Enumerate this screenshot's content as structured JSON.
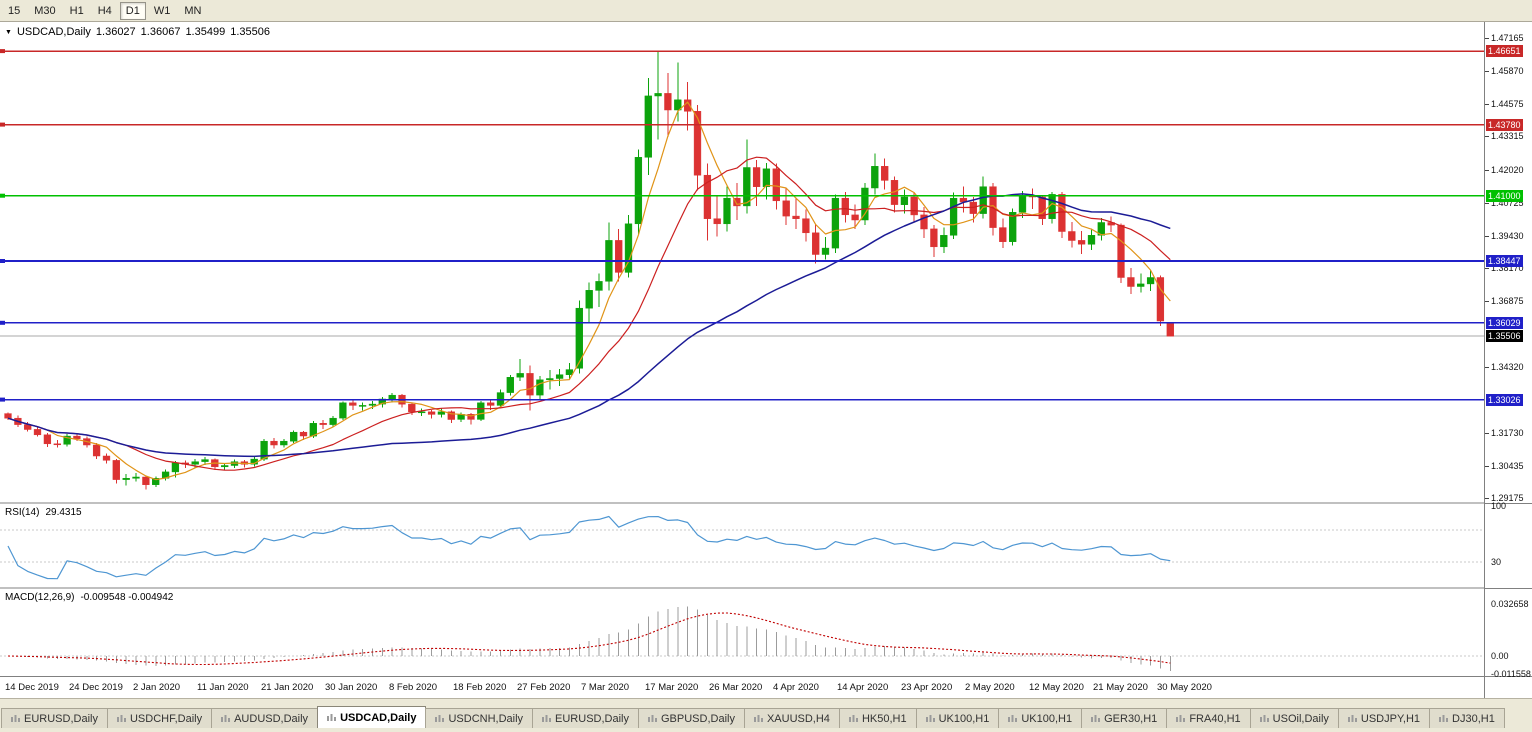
{
  "toolbar": {
    "timeframes": [
      "15",
      "M30",
      "H1",
      "H4",
      "D1",
      "W1",
      "MN"
    ],
    "active": "D1"
  },
  "panels": {
    "main": {
      "symbol": "USDCAD,Daily",
      "open": "1.36027",
      "high": "1.36067",
      "low": "1.35499",
      "close": "1.35506"
    },
    "rsi": {
      "name": "RSI(14)",
      "value": "29.4315",
      "period": 14,
      "color": "#4E96D2",
      "levels": [
        70,
        30
      ],
      "axis_labels": [
        {
          "text": "100",
          "value": 100
        },
        {
          "text": "30",
          "value": 30
        }
      ]
    },
    "macd": {
      "name": "MACD(12,26,9)",
      "value": "-0.009548 -0.004942",
      "fast": 12,
      "slow": 26,
      "signal": 9,
      "hist_color": "#9C9C9C",
      "signal_color": "#C00000",
      "axis_labels": [
        {
          "text": "0.032658",
          "value": 0.032658
        },
        {
          "text": "0.00",
          "value": 0
        },
        {
          "text": "-0.011558",
          "value": -0.011558
        }
      ]
    }
  },
  "chart_data": {
    "type": "candlestick",
    "symbol": "USDCAD",
    "timeframe": "Daily",
    "up_color": "#0CA30C",
    "down_color": "#DC3232",
    "y_axis_ticks": [
      "1.47165",
      "1.45870",
      "1.44575",
      "1.43315",
      "1.42020",
      "1.40725",
      "1.39430",
      "1.38170",
      "1.36875",
      "1.34320",
      "1.31730",
      "1.30435",
      "1.29175"
    ],
    "x_axis_labels": [
      "14 Dec 2019",
      "24 Dec 2019",
      "2 Jan 2020",
      "11 Jan 2020",
      "21 Jan 2020",
      "30 Jan 2020",
      "8 Feb 2020",
      "18 Feb 2020",
      "27 Feb 2020",
      "7 Mar 2020",
      "17 Mar 2020",
      "26 Mar 2020",
      "4 Apr 2020",
      "14 Apr 2020",
      "23 Apr 2020",
      "2 May 2020",
      "12 May 2020",
      "21 May 2020",
      "30 May 2020"
    ],
    "horizontal_lines": [
      {
        "price": 1.46651,
        "label": "1.46651",
        "color": "#C82828"
      },
      {
        "price": 1.4378,
        "label": "1.43780",
        "color": "#C82828"
      },
      {
        "price": 1.41,
        "label": "1.41000",
        "color": "#00C000"
      },
      {
        "price": 1.38447,
        "label": "1.38447",
        "color": "#2020C8"
      },
      {
        "price": 1.36029,
        "label": "1.36029",
        "color": "#2020C8"
      },
      {
        "price": 1.33026,
        "label": "1.33026",
        "color": "#2020C8"
      }
    ],
    "current_price": {
      "value": 1.35506,
      "label": "1.35506",
      "line_color": "#A8A8A8",
      "label_bg": "#000000"
    },
    "moving_averages": [
      {
        "period": 5,
        "color": "#E09418",
        "width": 1.2
      },
      {
        "period": 13,
        "color": "#CC2020",
        "width": 1.2
      },
      {
        "period": 40,
        "color": "#1C1C96",
        "width": 1.5
      }
    ],
    "candles": [
      [
        1.3248,
        1.3252,
        1.3222,
        1.323
      ],
      [
        1.323,
        1.324,
        1.3196,
        1.3205
      ],
      [
        1.3205,
        1.3215,
        1.3178,
        1.3186
      ],
      [
        1.3186,
        1.3198,
        1.3158,
        1.3165
      ],
      [
        1.3165,
        1.3172,
        1.3118,
        1.313
      ],
      [
        1.313,
        1.3145,
        1.3115,
        1.3128
      ],
      [
        1.3128,
        1.3168,
        1.312,
        1.316
      ],
      [
        1.316,
        1.3172,
        1.314,
        1.315
      ],
      [
        1.315,
        1.3158,
        1.3116,
        1.3125
      ],
      [
        1.3125,
        1.3132,
        1.307,
        1.3082
      ],
      [
        1.3082,
        1.3092,
        1.3052,
        1.3065
      ],
      [
        1.3065,
        1.307,
        1.2975,
        1.299
      ],
      [
        1.299,
        1.3012,
        1.2966,
        1.2995
      ],
      [
        1.2995,
        1.3015,
        1.2982,
        1.3
      ],
      [
        1.3,
        1.3005,
        1.2952,
        1.297
      ],
      [
        1.297,
        1.3002,
        1.296,
        1.2995
      ],
      [
        1.2995,
        1.303,
        1.2986,
        1.302
      ],
      [
        1.302,
        1.3062,
        1.2998,
        1.3055
      ],
      [
        1.3055,
        1.3065,
        1.3035,
        1.305
      ],
      [
        1.305,
        1.307,
        1.3038,
        1.306
      ],
      [
        1.306,
        1.3078,
        1.3046,
        1.3068
      ],
      [
        1.3068,
        1.3072,
        1.3028,
        1.304
      ],
      [
        1.304,
        1.3055,
        1.3025,
        1.3045
      ],
      [
        1.3045,
        1.3068,
        1.3035,
        1.306
      ],
      [
        1.306,
        1.3066,
        1.3038,
        1.305
      ],
      [
        1.305,
        1.308,
        1.3042,
        1.307
      ],
      [
        1.307,
        1.3148,
        1.3062,
        1.314
      ],
      [
        1.314,
        1.3152,
        1.3112,
        1.3125
      ],
      [
        1.3125,
        1.3148,
        1.3115,
        1.314
      ],
      [
        1.314,
        1.3182,
        1.3132,
        1.3175
      ],
      [
        1.3175,
        1.318,
        1.3145,
        1.316
      ],
      [
        1.316,
        1.3218,
        1.3152,
        1.321
      ],
      [
        1.321,
        1.3222,
        1.3188,
        1.3205
      ],
      [
        1.3205,
        1.3238,
        1.3195,
        1.323
      ],
      [
        1.323,
        1.3296,
        1.3222,
        1.329
      ],
      [
        1.329,
        1.3302,
        1.3262,
        1.328
      ],
      [
        1.328,
        1.3292,
        1.326,
        1.328
      ],
      [
        1.328,
        1.3298,
        1.3265,
        1.3285
      ],
      [
        1.3285,
        1.3312,
        1.3272,
        1.3305
      ],
      [
        1.3305,
        1.3329,
        1.3292,
        1.332
      ],
      [
        1.332,
        1.3324,
        1.3272,
        1.3285
      ],
      [
        1.3285,
        1.3292,
        1.3242,
        1.3255
      ],
      [
        1.3255,
        1.3268,
        1.3238,
        1.3255
      ],
      [
        1.3255,
        1.3262,
        1.3228,
        1.3245
      ],
      [
        1.3245,
        1.3268,
        1.3232,
        1.3255
      ],
      [
        1.3255,
        1.326,
        1.3212,
        1.3225
      ],
      [
        1.3225,
        1.3252,
        1.3215,
        1.3245
      ],
      [
        1.3245,
        1.325,
        1.3205,
        1.3225
      ],
      [
        1.3225,
        1.3298,
        1.3218,
        1.329
      ],
      [
        1.329,
        1.3305,
        1.3262,
        1.328
      ],
      [
        1.328,
        1.3342,
        1.3272,
        1.333
      ],
      [
        1.333,
        1.3398,
        1.3318,
        1.339
      ],
      [
        1.339,
        1.3462,
        1.3375,
        1.3405
      ],
      [
        1.3405,
        1.3435,
        1.326,
        1.332
      ],
      [
        1.332,
        1.3395,
        1.3305,
        1.338
      ],
      [
        1.338,
        1.3418,
        1.3342,
        1.3385
      ],
      [
        1.3385,
        1.3422,
        1.3355,
        1.34
      ],
      [
        1.34,
        1.3445,
        1.338,
        1.342
      ],
      [
        1.3425,
        1.369,
        1.3405,
        1.366
      ],
      [
        1.366,
        1.376,
        1.3605,
        1.373
      ],
      [
        1.373,
        1.3795,
        1.3665,
        1.3765
      ],
      [
        1.3765,
        1.3995,
        1.373,
        1.3925
      ],
      [
        1.3925,
        1.397,
        1.3765,
        1.38
      ],
      [
        1.38,
        1.4025,
        1.378,
        1.399
      ],
      [
        1.399,
        1.428,
        1.395,
        1.425
      ],
      [
        1.425,
        1.456,
        1.418,
        1.449
      ],
      [
        1.449,
        1.4668,
        1.432,
        1.45
      ],
      [
        1.45,
        1.458,
        1.433,
        1.4435
      ],
      [
        1.4435,
        1.462,
        1.439,
        1.4475
      ],
      [
        1.4475,
        1.4545,
        1.4355,
        1.443
      ],
      [
        1.443,
        1.4455,
        1.412,
        1.418
      ],
      [
        1.418,
        1.4225,
        1.3925,
        1.401
      ],
      [
        1.401,
        1.41,
        1.394,
        1.399
      ],
      [
        1.399,
        1.4135,
        1.396,
        1.409
      ],
      [
        1.409,
        1.415,
        1.4005,
        1.406
      ],
      [
        1.406,
        1.432,
        1.403,
        1.421
      ],
      [
        1.421,
        1.424,
        1.406,
        1.4135
      ],
      [
        1.4135,
        1.4228,
        1.4085,
        1.4205
      ],
      [
        1.4205,
        1.4225,
        1.4045,
        1.408
      ],
      [
        1.408,
        1.4128,
        1.3985,
        1.402
      ],
      [
        1.402,
        1.4092,
        1.397,
        1.401
      ],
      [
        1.401,
        1.4045,
        1.392,
        1.3955
      ],
      [
        1.3955,
        1.3988,
        1.3835,
        1.387
      ],
      [
        1.387,
        1.3938,
        1.385,
        1.3895
      ],
      [
        1.3895,
        1.4105,
        1.3875,
        1.409
      ],
      [
        1.409,
        1.4115,
        1.3995,
        1.4025
      ],
      [
        1.4025,
        1.4065,
        1.397,
        1.4005
      ],
      [
        1.4005,
        1.415,
        1.3985,
        1.413
      ],
      [
        1.413,
        1.4265,
        1.4105,
        1.4215
      ],
      [
        1.4215,
        1.4245,
        1.4125,
        1.416
      ],
      [
        1.416,
        1.4175,
        1.4035,
        1.4065
      ],
      [
        1.4065,
        1.4125,
        1.403,
        1.4095
      ],
      [
        1.4095,
        1.411,
        1.3995,
        1.4025
      ],
      [
        1.4025,
        1.4055,
        1.3935,
        1.397
      ],
      [
        1.397,
        1.3985,
        1.386,
        1.39
      ],
      [
        1.39,
        1.3975,
        1.3875,
        1.3945
      ],
      [
        1.3945,
        1.4112,
        1.393,
        1.409
      ],
      [
        1.409,
        1.4135,
        1.4035,
        1.4075
      ],
      [
        1.4075,
        1.4095,
        1.3995,
        1.403
      ],
      [
        1.403,
        1.4175,
        1.401,
        1.4135
      ],
      [
        1.4135,
        1.415,
        1.3945,
        1.3975
      ],
      [
        1.3975,
        1.401,
        1.3895,
        1.392
      ],
      [
        1.392,
        1.405,
        1.3905,
        1.4035
      ],
      [
        1.4035,
        1.4118,
        1.4012,
        1.41
      ],
      [
        1.41,
        1.4128,
        1.4048,
        1.4095
      ],
      [
        1.4095,
        1.4102,
        1.3985,
        1.401
      ],
      [
        1.401,
        1.4115,
        1.3992,
        1.4105
      ],
      [
        1.4105,
        1.4115,
        1.3935,
        1.396
      ],
      [
        1.396,
        1.3998,
        1.3898,
        1.3925
      ],
      [
        1.3925,
        1.3962,
        1.3872,
        1.391
      ],
      [
        1.391,
        1.3972,
        1.3888,
        1.3945
      ],
      [
        1.3945,
        1.4012,
        1.3925,
        1.3995
      ],
      [
        1.3995,
        1.4018,
        1.3958,
        1.3985
      ],
      [
        1.3985,
        1.3992,
        1.3758,
        1.378
      ],
      [
        1.378,
        1.3818,
        1.3715,
        1.3745
      ],
      [
        1.3745,
        1.3795,
        1.3722,
        1.3755
      ],
      [
        1.3755,
        1.381,
        1.3728,
        1.378
      ],
      [
        1.378,
        1.3788,
        1.359,
        1.361
      ],
      [
        1.36027,
        1.36067,
        1.35499,
        1.35506
      ]
    ]
  },
  "tabs": [
    {
      "label": "EURUSD,Daily",
      "active": false
    },
    {
      "label": "USDCHF,Daily",
      "active": false
    },
    {
      "label": "AUDUSD,Daily",
      "active": false
    },
    {
      "label": "USDCAD,Daily",
      "active": true
    },
    {
      "label": "USDCNH,Daily",
      "active": false
    },
    {
      "label": "EURUSD,Daily",
      "active": false
    },
    {
      "label": "GBPUSD,Daily",
      "active": false
    },
    {
      "label": "XAUUSD,H4",
      "active": false
    },
    {
      "label": "HK50,H1",
      "active": false
    },
    {
      "label": "UK100,H1",
      "active": false
    },
    {
      "label": "UK100,H1",
      "active": false
    },
    {
      "label": "GER30,H1",
      "active": false
    },
    {
      "label": "FRA40,H1",
      "active": false
    },
    {
      "label": "USOil,Daily",
      "active": false
    },
    {
      "label": "USDJPY,H1",
      "active": false
    },
    {
      "label": "DJ30,H1",
      "active": false
    }
  ]
}
